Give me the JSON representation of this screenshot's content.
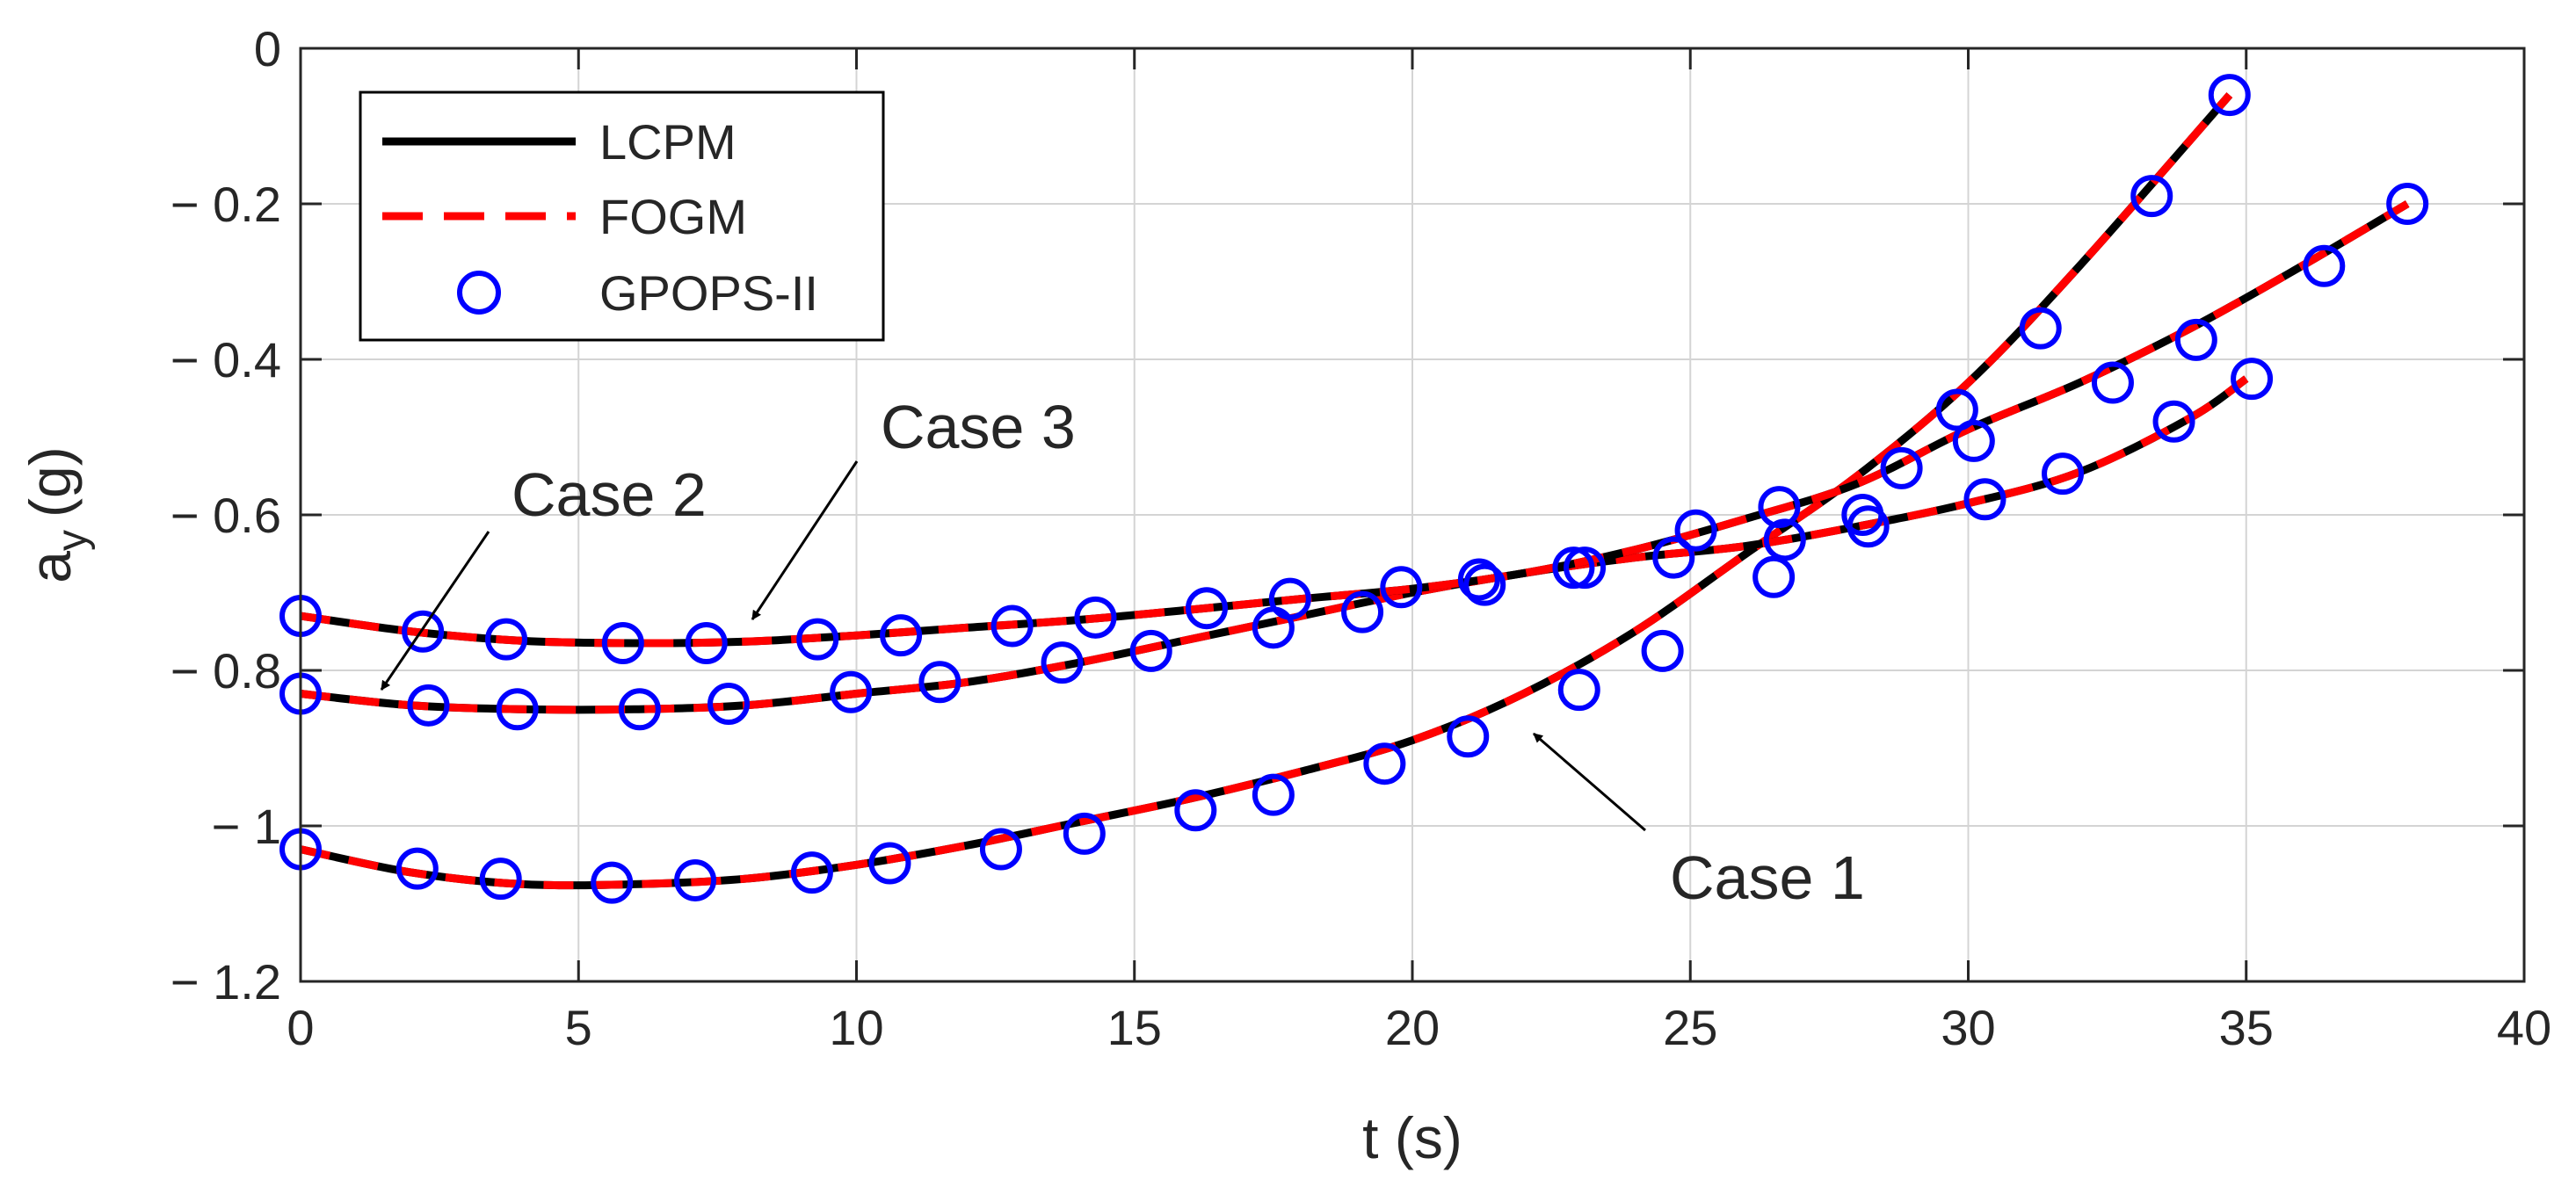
{
  "chart_data": {
    "type": "line",
    "xlabel": "t (s)",
    "ylabel": {
      "base": "a",
      "subscript": "y",
      "unit": "(g)"
    },
    "xlim": [
      0,
      40
    ],
    "ylim": [
      -1.2,
      0
    ],
    "xticks": [
      0,
      5,
      10,
      15,
      20,
      25,
      30,
      35,
      40
    ],
    "yticks": [
      0,
      -0.2,
      -0.4,
      -0.6,
      -0.8,
      -1,
      -1.2
    ],
    "xtick_labels": [
      "0",
      "5",
      "10",
      "15",
      "20",
      "25",
      "30",
      "35",
      "40"
    ],
    "ytick_labels": [
      "0",
      "− 0.2",
      "− 0.4",
      "− 0.6",
      "− 0.8",
      "− 1",
      "− 1.2"
    ],
    "grid": true,
    "legend": {
      "position": "top-left",
      "entries": [
        {
          "label": "LCPM",
          "style": "solid",
          "color": "#000000"
        },
        {
          "label": "FOGM",
          "style": "dashed",
          "color": "#ff0000"
        },
        {
          "label": "GPOPS-II",
          "style": "circle",
          "color": "#0000ff"
        }
      ]
    },
    "cases": [
      {
        "label": "Case 1",
        "x": [
          0,
          2,
          4,
          6,
          8,
          10,
          12,
          14,
          16,
          18,
          20,
          22,
          24,
          26,
          28,
          30,
          32,
          34.7
        ],
        "y": [
          -1.03,
          -1.06,
          -1.075,
          -1.075,
          -1.068,
          -1.05,
          -1.025,
          -0.995,
          -0.965,
          -0.93,
          -0.89,
          -0.83,
          -0.75,
          -0.65,
          -0.55,
          -0.43,
          -0.28,
          -0.06
        ],
        "markers_x": [
          0,
          2.1,
          3.6,
          5.6,
          7.1,
          9.2,
          10.6,
          12.6,
          14.1,
          16.1,
          17.5,
          19.5,
          21,
          23,
          24.5,
          26.5,
          28.1,
          29.8,
          31.3,
          33.3,
          34.7
        ],
        "markers_y": [
          -1.03,
          -1.055,
          -1.068,
          -1.073,
          -1.07,
          -1.06,
          -1.048,
          -1.03,
          -1.01,
          -0.98,
          -0.96,
          -0.92,
          -0.885,
          -0.825,
          -0.775,
          -0.68,
          -0.6,
          -0.465,
          -0.36,
          -0.19,
          -0.06
        ]
      },
      {
        "label": "Case 2",
        "x": [
          0,
          2,
          4,
          6,
          8,
          10,
          12,
          14,
          16,
          18,
          20,
          22,
          24,
          26,
          28,
          30,
          32,
          34,
          35
        ],
        "y": [
          -0.83,
          -0.845,
          -0.85,
          -0.85,
          -0.845,
          -0.83,
          -0.815,
          -0.79,
          -0.76,
          -0.73,
          -0.7,
          -0.675,
          -0.655,
          -0.64,
          -0.615,
          -0.585,
          -0.545,
          -0.475,
          -0.425
        ],
        "markers_x": [
          0,
          2.3,
          3.9,
          6.1,
          7.7,
          9.9,
          11.5,
          13.7,
          15.3,
          17.5,
          19.1,
          21.3,
          22.9,
          24.7,
          26.7,
          28.2,
          30.3,
          31.7,
          33.7,
          35.1
        ],
        "markers_y": [
          -0.83,
          -0.845,
          -0.85,
          -0.85,
          -0.843,
          -0.828,
          -0.815,
          -0.79,
          -0.775,
          -0.745,
          -0.725,
          -0.69,
          -0.668,
          -0.655,
          -0.632,
          -0.615,
          -0.58,
          -0.547,
          -0.48,
          -0.425
        ]
      },
      {
        "label": "Case 3",
        "x": [
          0,
          2,
          4,
          6,
          8,
          10,
          12,
          14,
          16,
          18,
          20,
          22,
          24,
          26,
          28,
          30,
          32,
          34,
          36,
          37.9
        ],
        "y": [
          -0.73,
          -0.75,
          -0.762,
          -0.765,
          -0.763,
          -0.755,
          -0.745,
          -0.735,
          -0.722,
          -0.708,
          -0.695,
          -0.675,
          -0.645,
          -0.605,
          -0.56,
          -0.49,
          -0.43,
          -0.36,
          -0.28,
          -0.2
        ],
        "markers_x": [
          0,
          2.2,
          3.7,
          5.8,
          7.3,
          9.3,
          10.8,
          12.8,
          14.3,
          16.3,
          17.8,
          19.8,
          21.2,
          23.1,
          25.1,
          26.6,
          28.8,
          30.1,
          32.6,
          34.1,
          36.4,
          37.9
        ],
        "markers_y": [
          -0.73,
          -0.75,
          -0.76,
          -0.765,
          -0.765,
          -0.76,
          -0.755,
          -0.743,
          -0.732,
          -0.72,
          -0.708,
          -0.693,
          -0.683,
          -0.668,
          -0.62,
          -0.59,
          -0.54,
          -0.505,
          -0.43,
          -0.375,
          -0.28,
          -0.2
        ]
      }
    ],
    "annotations": [
      {
        "text": "Case 1",
        "target_x": 22,
        "target_y": -0.86
      },
      {
        "text": "Case 2",
        "target_x": 1.3,
        "target_y": -0.83
      },
      {
        "text": "Case 3",
        "target_x": 8.1,
        "target_y": -0.752
      }
    ]
  }
}
